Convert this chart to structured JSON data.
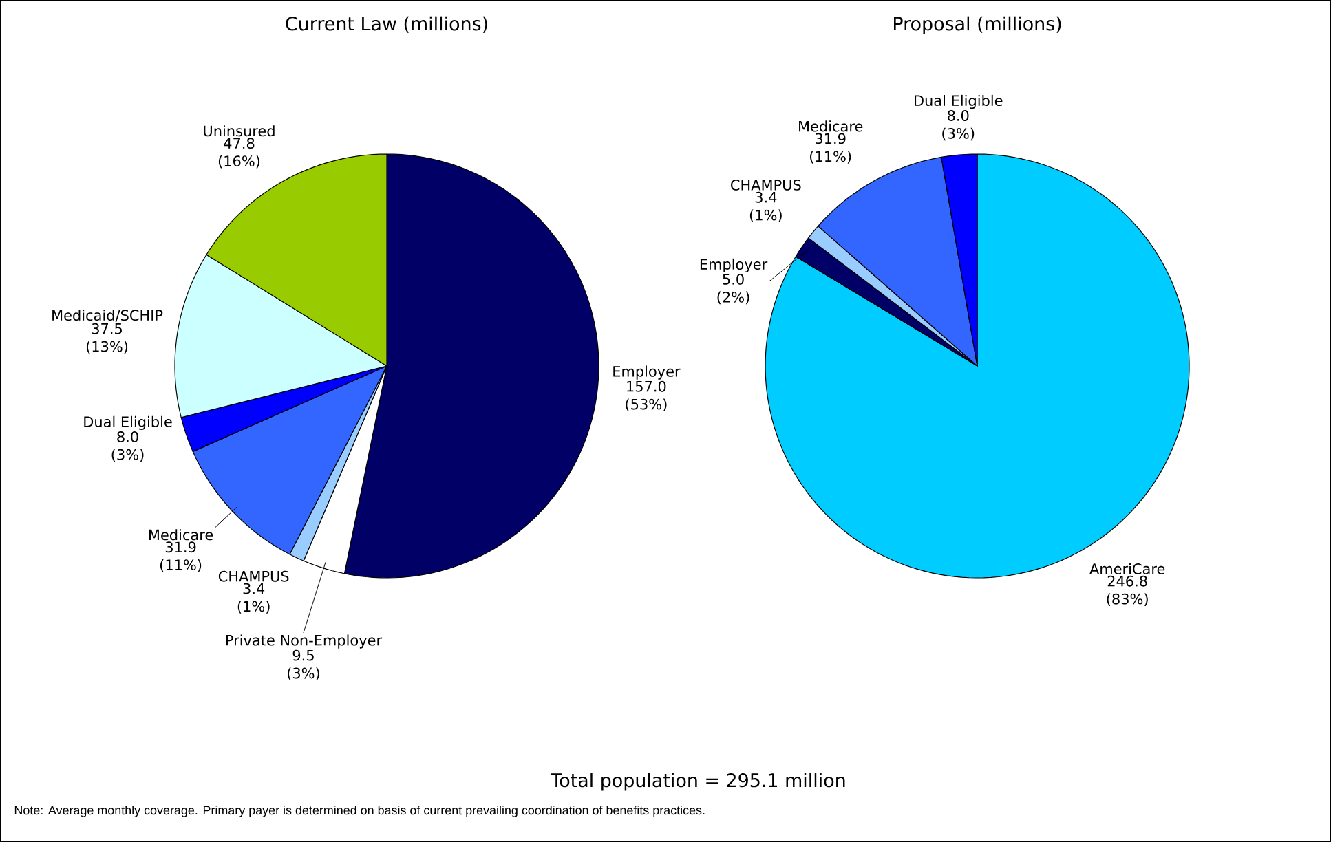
{
  "chart_data": [
    {
      "type": "pie",
      "title": "Current Law (millions)",
      "categories": [
        "Employer",
        "Private Non-Employer",
        "CHAMPUS",
        "Medicare",
        "Dual Eligible",
        "Medicaid/SCHIP",
        "Uninsured"
      ],
      "values": [
        157.0,
        9.5,
        3.4,
        31.9,
        8.0,
        37.5,
        47.8
      ],
      "value_labels": [
        "157.0 (53%)",
        "9.5 (3%)",
        "3.4 (1%)",
        "31.9 (11%)",
        "8.0 (3%)",
        "37.5 (13%)",
        "47.8 (16%)"
      ],
      "colors": [
        "#000066",
        "#ffffff",
        "#99ccff",
        "#3366ff",
        "#0000ff",
        "#ccffff",
        "#99cc00"
      ]
    },
    {
      "type": "pie",
      "title": "Proposal (millions)",
      "categories": [
        "AmeriCare",
        "Employer",
        "CHAMPUS",
        "Medicare",
        "Dual Eligible"
      ],
      "values": [
        246.8,
        5.0,
        3.4,
        31.9,
        8.0
      ],
      "value_labels": [
        "246.8 (83%)",
        "5.0 (2%)",
        "3.4 (1%)",
        "31.9 (11%)",
        "8.0 (3%)"
      ],
      "colors": [
        "#00ccff",
        "#000066",
        "#99ccff",
        "#3366ff",
        "#0000ff"
      ],
      "annotations": [
        "Total population = 295.1 million",
        "Note: Average monthly coverage. Primary payer is determined on basis of current prevailing coordination of benefits practices."
      ]
    }
  ]
}
